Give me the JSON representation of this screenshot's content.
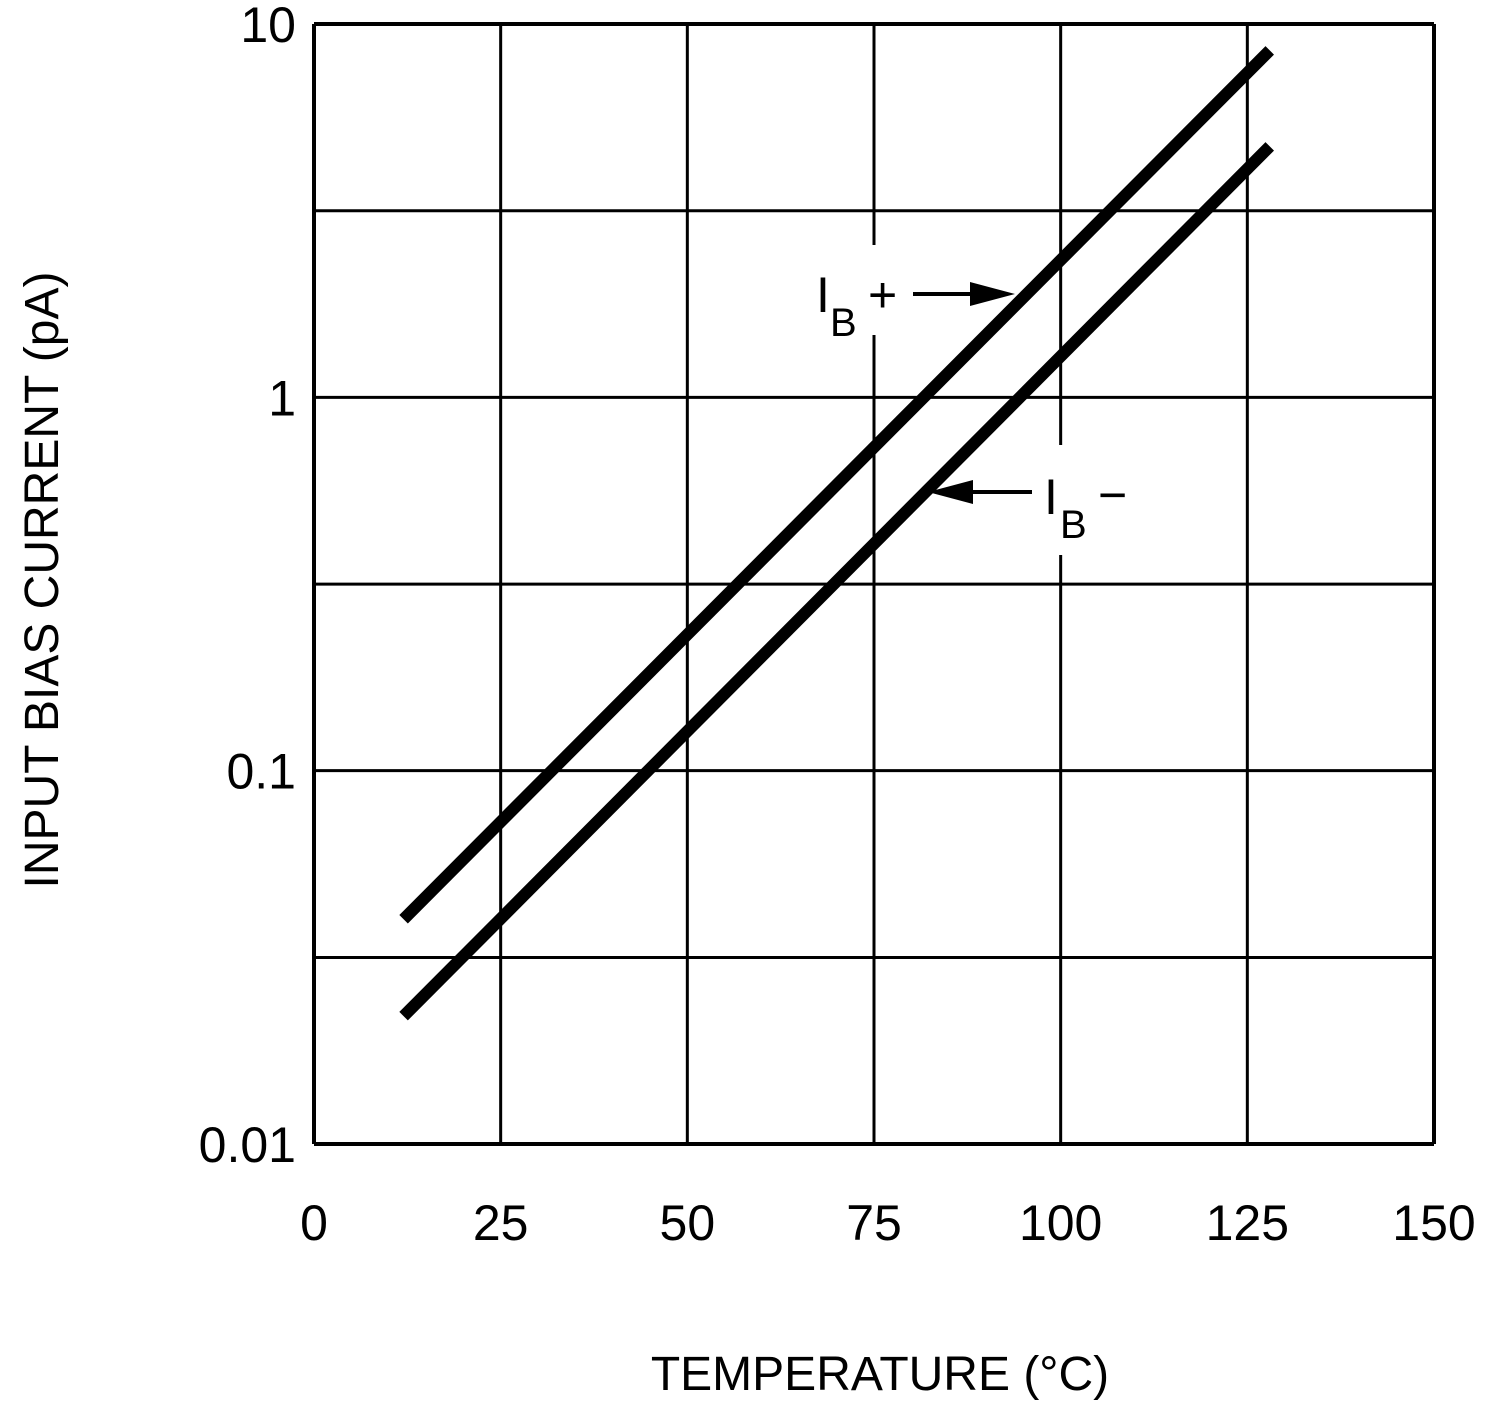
{
  "chart_data": {
    "type": "line",
    "xlabel": "TEMPERATURE (°C)",
    "ylabel": "INPUT BIAS CURRENT (pA)",
    "xlim": [
      0,
      150
    ],
    "ylim": [
      0.01,
      10
    ],
    "yscale": "log",
    "grid": true,
    "x_ticks": [
      0,
      25,
      50,
      75,
      100,
      125,
      150
    ],
    "x_tick_labels": [
      "0",
      "25",
      "50",
      "75",
      "100",
      "125",
      "150"
    ],
    "y_ticks": [
      0.01,
      0.1,
      1,
      10
    ],
    "y_tick_labels": [
      "0.01",
      "0.1",
      "1",
      "10"
    ],
    "y_gridlines": [
      0.01,
      0.0316,
      0.1,
      0.316,
      1,
      3.16,
      10
    ],
    "series": [
      {
        "name": "IB+",
        "label": {
          "main": "I",
          "sub": "B",
          "sign": "+"
        },
        "x": [
          12,
          128
        ],
        "y": [
          0.04,
          8.5
        ],
        "color": "#000000"
      },
      {
        "name": "IB-",
        "label": {
          "main": "I",
          "sub": "B",
          "sign": "−"
        },
        "x": [
          12,
          128
        ],
        "y": [
          0.022,
          4.7
        ],
        "color": "#000000"
      }
    ]
  }
}
